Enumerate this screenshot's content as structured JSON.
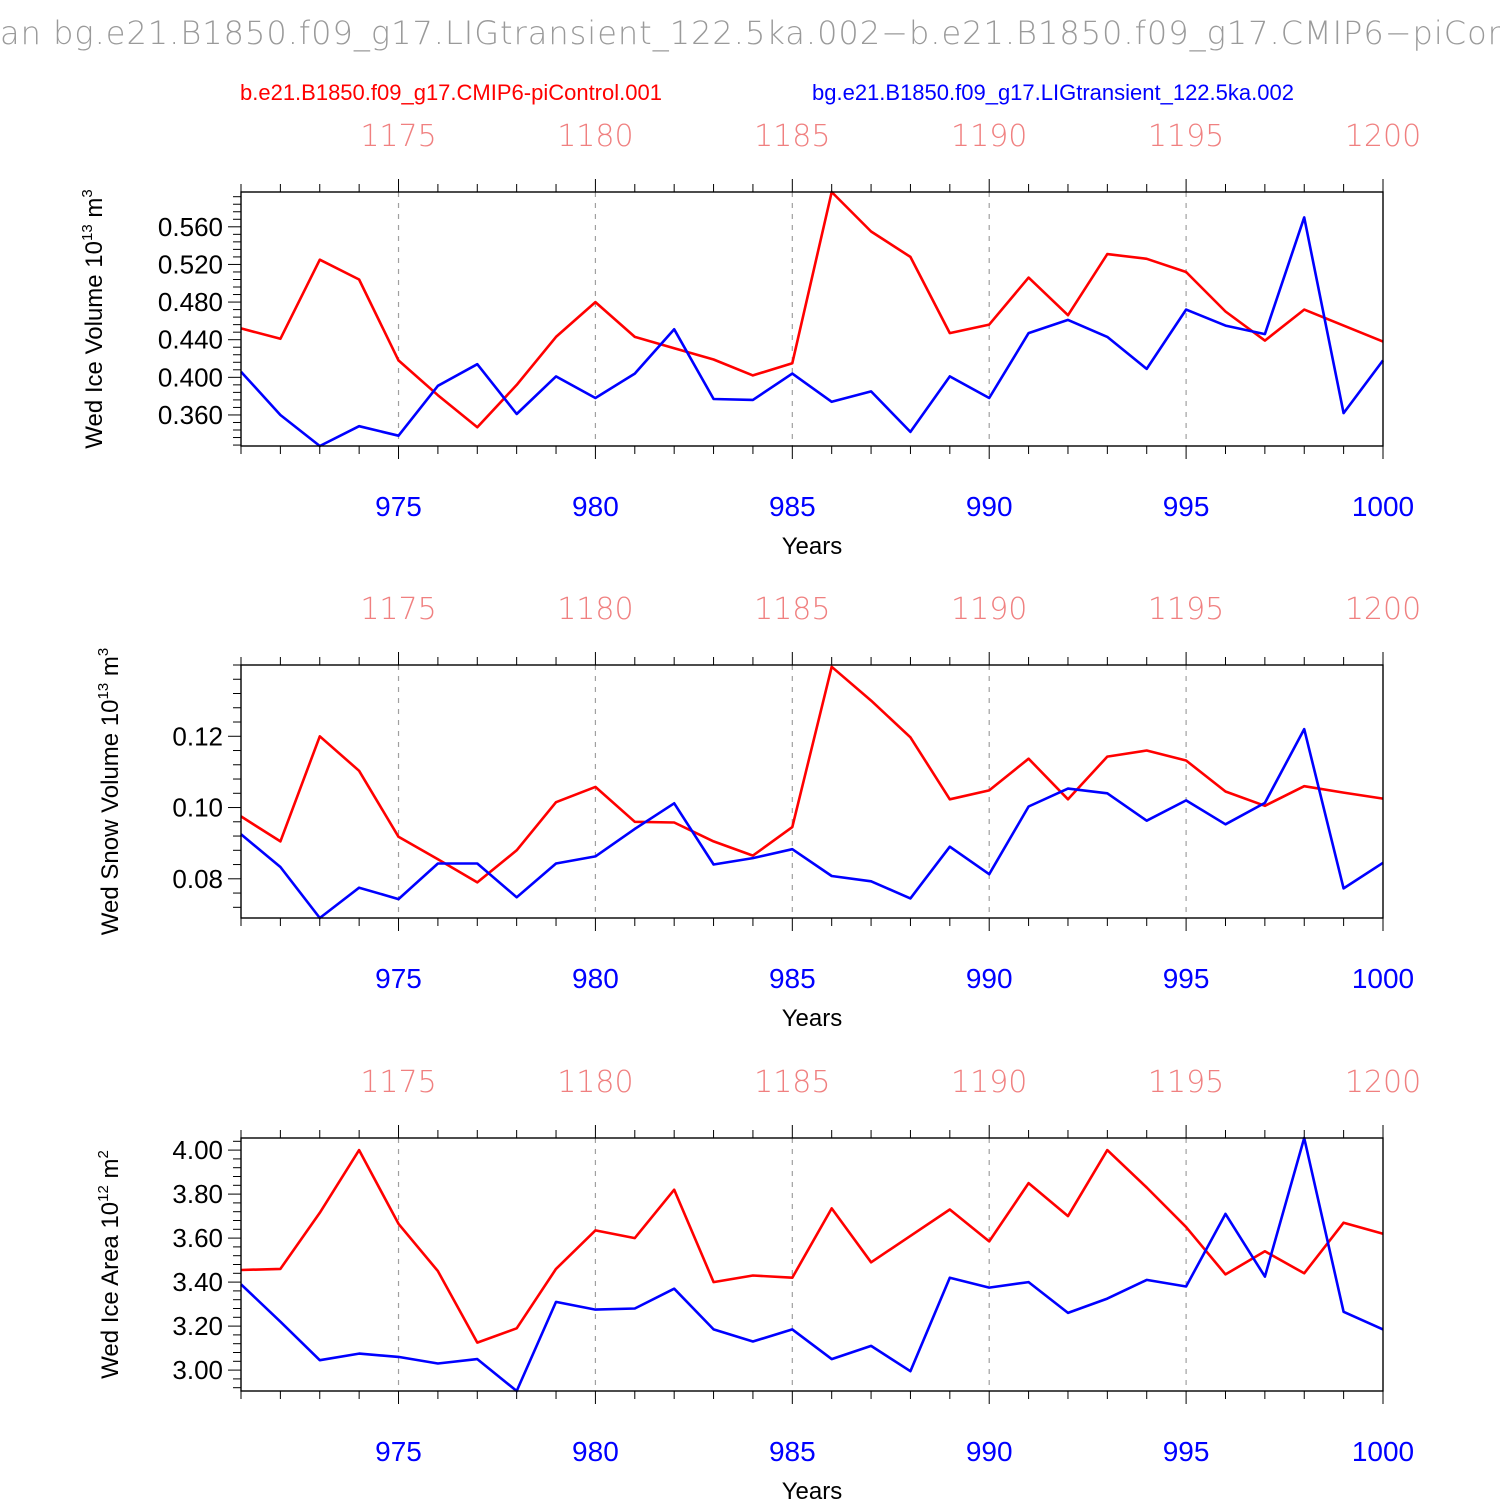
{
  "title": "an bg.e21.B1850.f09_g17.LIGtransient_122.5ka.002−b.e21.B1850.f09_g17.CMIP6−piCor",
  "legend": {
    "red": "b.e21.B1850.f09_g17.CMIP6-piControl.001",
    "blue": "bg.e21.B1850.f09_g17.LIGtransient_122.5ka.002"
  },
  "colors": {
    "red": "#ff0000",
    "blue": "#0000ff",
    "top_axis": "#f08080",
    "grid": "#a0a0a0"
  },
  "chart_data": [
    {
      "type": "line",
      "ylabel": "Wed Ice Volume 10",
      "ylabel_exp": "13",
      "ylabel_unit": " m",
      "ylabel_unit_exp": "3",
      "xlabel": "Years",
      "xlim": [
        971,
        1000
      ],
      "ylim": [
        0.327,
        0.597
      ],
      "xticks": [
        "975",
        "980",
        "985",
        "990",
        "995",
        "1000"
      ],
      "top_xticks": [
        "1175",
        "1180",
        "1185",
        "1190",
        "1195",
        "1200"
      ],
      "yticks": [
        "0.360",
        "0.400",
        "0.440",
        "0.480",
        "0.520",
        "0.560"
      ],
      "ytick_values": [
        0.36,
        0.4,
        0.44,
        0.48,
        0.52,
        0.56
      ],
      "x": [
        971,
        972,
        973,
        974,
        975,
        976,
        977,
        978,
        979,
        980,
        981,
        982,
        983,
        984,
        985,
        986,
        987,
        988,
        989,
        990,
        991,
        992,
        993,
        994,
        995,
        996,
        997,
        998,
        999,
        1000
      ],
      "series": [
        {
          "color": "red",
          "values": [
            0.452,
            0.441,
            0.525,
            0.504,
            0.418,
            0.381,
            0.347,
            0.392,
            0.443,
            0.48,
            0.443,
            0.431,
            0.419,
            0.402,
            0.415,
            0.597,
            0.555,
            0.528,
            0.447,
            0.456,
            0.506,
            0.466,
            0.531,
            0.526,
            0.512,
            0.47,
            0.439,
            0.472,
            0.455,
            0.438
          ]
        },
        {
          "color": "blue",
          "values": [
            0.406,
            0.36,
            0.327,
            0.348,
            0.338,
            0.391,
            0.414,
            0.361,
            0.401,
            0.378,
            0.404,
            0.451,
            0.377,
            0.376,
            0.404,
            0.374,
            0.385,
            0.342,
            0.401,
            0.378,
            0.447,
            0.461,
            0.443,
            0.409,
            0.472,
            0.455,
            0.446,
            0.57,
            0.362,
            0.418
          ]
        }
      ]
    },
    {
      "type": "line",
      "ylabel": "Wed Snow Volume 10",
      "ylabel_exp": "13",
      "ylabel_unit": " m",
      "ylabel_unit_exp": "3",
      "xlabel": "Years",
      "xlim": [
        971,
        1000
      ],
      "ylim": [
        0.069,
        0.14
      ],
      "xticks": [
        "975",
        "980",
        "985",
        "990",
        "995",
        "1000"
      ],
      "top_xticks": [
        "1175",
        "1180",
        "1185",
        "1190",
        "1195",
        "1200"
      ],
      "yticks": [
        "0.08",
        "0.10",
        "0.12"
      ],
      "ytick_values": [
        0.08,
        0.1,
        0.12
      ],
      "x": [
        971,
        972,
        973,
        974,
        975,
        976,
        977,
        978,
        979,
        980,
        981,
        982,
        983,
        984,
        985,
        986,
        987,
        988,
        989,
        990,
        991,
        992,
        993,
        994,
        995,
        996,
        997,
        998,
        999,
        1000
      ],
      "series": [
        {
          "color": "red",
          "values": [
            0.0975,
            0.0905,
            0.12,
            0.1103,
            0.0918,
            0.0855,
            0.079,
            0.088,
            0.1015,
            0.1058,
            0.096,
            0.0958,
            0.0905,
            0.0865,
            0.0945,
            0.1395,
            0.13,
            0.1197,
            0.1023,
            0.1048,
            0.1137,
            0.1023,
            0.1143,
            0.116,
            0.1132,
            0.1045,
            0.1005,
            0.106,
            0.1042,
            0.1025
          ]
        },
        {
          "color": "blue",
          "values": [
            0.0925,
            0.0833,
            0.069,
            0.0775,
            0.0743,
            0.0843,
            0.0843,
            0.0748,
            0.0843,
            0.0863,
            0.094,
            0.1012,
            0.084,
            0.0858,
            0.0883,
            0.0808,
            0.0793,
            0.0745,
            0.089,
            0.0813,
            0.1003,
            0.1053,
            0.104,
            0.0963,
            0.102,
            0.0953,
            0.1013,
            0.122,
            0.0773,
            0.0845
          ]
        }
      ]
    },
    {
      "type": "line",
      "ylabel": "Wed Ice Area 10",
      "ylabel_exp": "12",
      "ylabel_unit": " m",
      "ylabel_unit_exp": "2",
      "xlabel": "Years",
      "xlim": [
        971,
        1000
      ],
      "ylim": [
        2.905,
        4.055
      ],
      "xticks": [
        "975",
        "980",
        "985",
        "990",
        "995",
        "1000"
      ],
      "top_xticks": [
        "1175",
        "1180",
        "1185",
        "1190",
        "1195",
        "1200"
      ],
      "yticks": [
        "3.00",
        "3.20",
        "3.40",
        "3.60",
        "3.80",
        "4.00"
      ],
      "ytick_values": [
        3.0,
        3.2,
        3.4,
        3.6,
        3.8,
        4.0
      ],
      "x": [
        971,
        972,
        973,
        974,
        975,
        976,
        977,
        978,
        979,
        980,
        981,
        982,
        983,
        984,
        985,
        986,
        987,
        988,
        989,
        990,
        991,
        992,
        993,
        994,
        995,
        996,
        997,
        998,
        999,
        1000
      ],
      "series": [
        {
          "color": "red",
          "values": [
            3.455,
            3.46,
            3.715,
            4.0,
            3.665,
            3.45,
            3.125,
            3.19,
            3.46,
            3.635,
            3.6,
            3.82,
            3.4,
            3.43,
            3.42,
            3.735,
            3.49,
            3.61,
            3.73,
            3.585,
            3.85,
            3.7,
            4.0,
            3.83,
            3.65,
            3.435,
            3.54,
            3.44,
            3.67,
            3.62
          ]
        },
        {
          "color": "blue",
          "values": [
            3.39,
            3.22,
            3.045,
            3.075,
            3.06,
            3.03,
            3.05,
            2.905,
            3.31,
            3.275,
            3.28,
            3.37,
            3.185,
            3.13,
            3.185,
            3.05,
            3.11,
            2.995,
            3.42,
            3.375,
            3.4,
            3.26,
            3.325,
            3.41,
            3.38,
            3.71,
            3.425,
            4.055,
            3.265,
            3.185
          ]
        }
      ]
    }
  ]
}
